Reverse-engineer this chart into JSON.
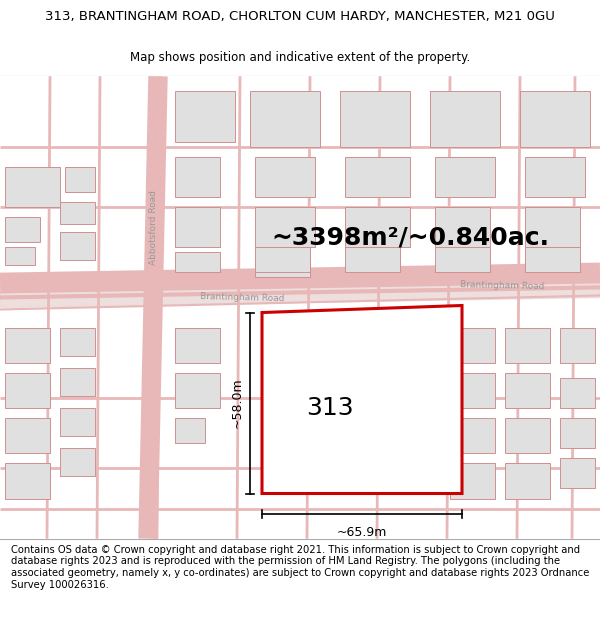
{
  "title_line1": "313, BRANTINGHAM ROAD, CHORLTON CUM HARDY, MANCHESTER, M21 0GU",
  "title_line2": "Map shows position and indicative extent of the property.",
  "area_text": "~3398m²/~0.840ac.",
  "property_label": "313",
  "dim_width": "~65.9m",
  "dim_height": "~58.0m",
  "road_label_abbotsford": "Abbotsford Road",
  "road_label_brant1": "Brantingham Road",
  "road_label_brant2": "Brantingham Road",
  "footer_text": "Contains OS data © Crown copyright and database right 2021. This information is subject to Crown copyright and database rights 2023 and is reproduced with the permission of HM Land Registry. The polygons (including the associated geometry, namely x, y co-ordinates) are subject to Crown copyright and database rights 2023 Ordnance Survey 100026316.",
  "bg_color": "#ffffff",
  "map_bg": "#f0f0f0",
  "road_line_color": "#e8b8b8",
  "building_fill": "#e0e0e0",
  "building_edge": "#d09090",
  "property_color": "#cc0000",
  "property_lw": 2.2,
  "title_fontsize": 9.5,
  "subtitle_fontsize": 8.5,
  "area_fontsize": 18,
  "label_fontsize": 18,
  "footer_fontsize": 7.2,
  "road_label_fontsize": 6.5,
  "dim_fontsize": 9
}
